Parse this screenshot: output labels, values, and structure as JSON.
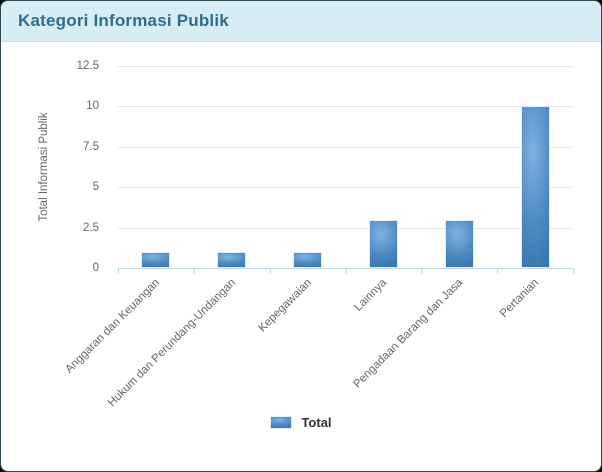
{
  "header": {
    "title": "Kategori Informasi Publik"
  },
  "chart_data": {
    "type": "bar",
    "title": "Kategori Informasi Publik",
    "categories": [
      "Anggaran dan Keuangan",
      "Hukum dan Perundang-Undangan",
      "Kepegawaian",
      "Lainnya",
      "Pengadaan Barang dan Jasa",
      "Pertanian"
    ],
    "series": [
      {
        "name": "Total",
        "values": [
          1,
          1,
          1,
          3,
          3,
          10
        ]
      }
    ],
    "xlabel": "",
    "ylabel": "Total Informasi Publik",
    "ylim": [
      0,
      12.5
    ],
    "yticks": [
      0,
      2.5,
      5,
      7.5,
      10,
      12.5
    ],
    "grid": true,
    "legend_position": "bottom"
  },
  "colors": {
    "card_bg": "#ffffff",
    "header_bg": "#d8ecf6",
    "header_text": "#2d6e8f",
    "bar_light": "#7fb2e0",
    "bar_mid": "#4d8ac2",
    "bar_dark": "#2e6ca7",
    "bar_border": "#e4eef8",
    "grid_line": "#e6e6e6",
    "axis_line": "#c3d9e6",
    "tick_text": "#666666",
    "legend_text": "#333333"
  }
}
